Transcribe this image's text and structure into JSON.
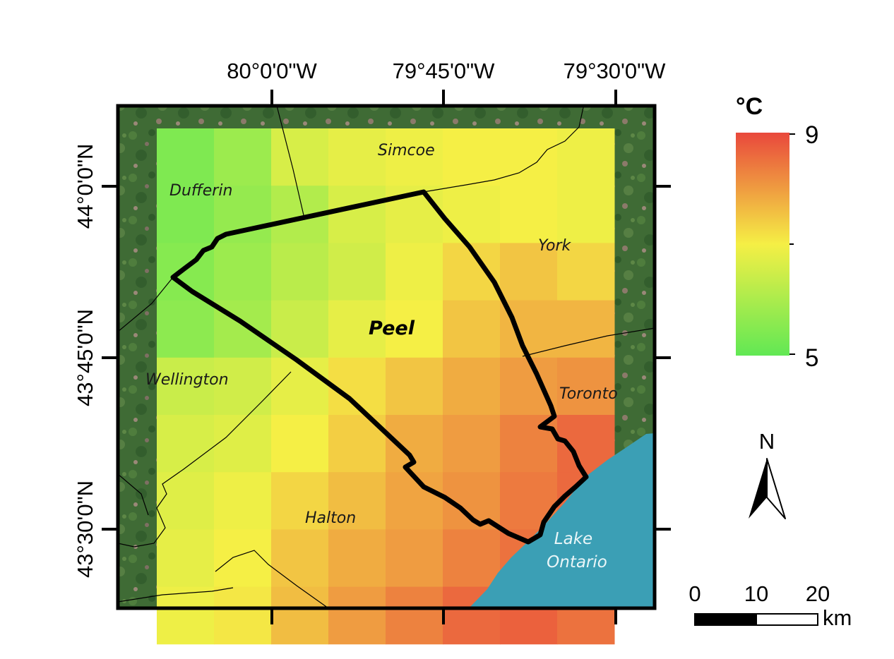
{
  "map": {
    "axes": {
      "top_ticks": [
        "80°0'0\"W",
        "79°45'0\"W",
        "79°30'0\"W"
      ],
      "left_ticks": [
        "44°0'0\"N",
        "43°45'0\"N",
        "43°30'0\"N"
      ]
    },
    "regions": {
      "simcoe": "Simcoe",
      "dufferin": "Dufferin",
      "york": "York",
      "peel": "Peel",
      "wellington": "Wellington",
      "toronto": "Toronto",
      "halton": "Halton",
      "lake_line1": "Lake",
      "lake_line2": "Ontario"
    },
    "temperature_grid": {
      "unit": "°C",
      "min": 5,
      "max": 9,
      "rows": [
        [
          5.4,
          5.8,
          6.6,
          6.8,
          6.9,
          7.0,
          7.0,
          6.9
        ],
        [
          5.4,
          5.7,
          6.1,
          6.6,
          6.8,
          6.9,
          7.0,
          6.9
        ],
        [
          5.5,
          5.8,
          6.2,
          6.5,
          6.9,
          7.3,
          7.5,
          7.3
        ],
        [
          5.6,
          5.9,
          6.4,
          6.8,
          7.0,
          7.5,
          7.7,
          7.7
        ],
        [
          6.4,
          6.5,
          6.8,
          7.2,
          7.5,
          7.8,
          8.0,
          8.1
        ],
        [
          6.6,
          6.7,
          7.0,
          7.4,
          7.8,
          8.0,
          8.3,
          8.6
        ],
        [
          6.7,
          6.9,
          7.3,
          7.6,
          7.9,
          8.1,
          8.4,
          8.6
        ],
        [
          6.8,
          7.0,
          7.5,
          7.8,
          8.0,
          8.3,
          8.5,
          8.3
        ],
        [
          6.9,
          7.1,
          7.6,
          8.0,
          8.3,
          8.6,
          8.7,
          8.5
        ]
      ]
    },
    "colors": {
      "ramp_low": "#61e854",
      "ramp_mid": "#f5ef45",
      "ramp_high": "#e9483c",
      "lake": "#3b9fb5",
      "satellite": "#3f6b35",
      "boundary": "#000000"
    }
  },
  "legend": {
    "unit": "°C",
    "max_label": "9",
    "min_label": "5"
  },
  "north_arrow": {
    "label": "N"
  },
  "scale_bar": {
    "labels": [
      "0",
      "10",
      "20"
    ],
    "unit": "km"
  }
}
